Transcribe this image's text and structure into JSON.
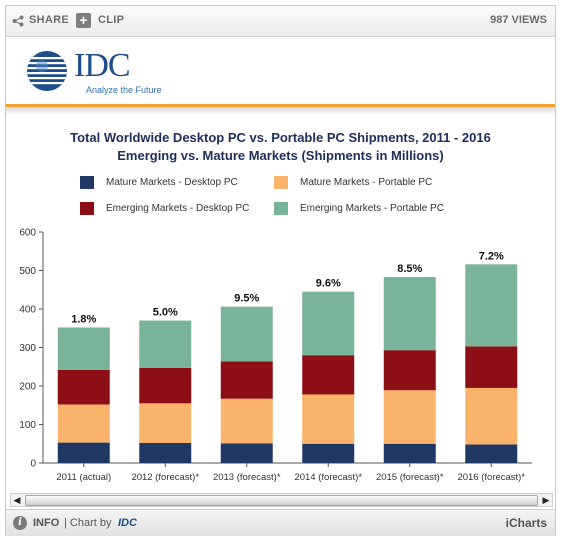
{
  "toolbar": {
    "share_label": "SHARE",
    "clip_label": "CLIP",
    "clip_icon": "plus-icon",
    "views_label": "987 VIEWS"
  },
  "logo": {
    "name": "IDC",
    "tagline": "Analyze the Future"
  },
  "footer": {
    "info_label": "INFO",
    "chart_by_label": "| Chart by",
    "chart_by_brand": "IDC",
    "brand_label": "iCharts"
  },
  "colors": {
    "accent": "#f0a030",
    "mature_desktop": "#1f3864",
    "mature_portable": "#f9b36a",
    "emerging_desktop": "#8b0f14",
    "emerging_portable": "#79b39a"
  },
  "chart_data": {
    "type": "bar",
    "stacked": true,
    "title": "Total Worldwide Desktop PC vs. Portable PC Shipments, 2011 - 2016",
    "subtitle": "Emerging vs. Mature Markets (Shipments in Millions)",
    "categories": [
      "2011 (actual)",
      "2012 (forecast)*",
      "2013 (forecast)*",
      "2014 (forecast)*",
      "2015 (forecast)*",
      "2016 (forecast)*"
    ],
    "series": [
      {
        "name": "Mature Markets - Desktop PC",
        "color": "#1f3864",
        "values": [
          53,
          52,
          51,
          50,
          50,
          48
        ]
      },
      {
        "name": "Mature Markets - Portable PC",
        "color": "#f9b36a",
        "values": [
          99,
          103,
          116,
          128,
          139,
          147
        ]
      },
      {
        "name": "Emerging Markets - Desktop PC",
        "color": "#8b0f14",
        "values": [
          90,
          92,
          97,
          102,
          104,
          108
        ]
      },
      {
        "name": "Emerging Markets - Portable PC",
        "color": "#79b39a",
        "values": [
          110,
          123,
          142,
          165,
          190,
          213
        ]
      }
    ],
    "data_labels": [
      "1.8%",
      "5.0%",
      "9.5%",
      "9.6%",
      "8.5%",
      "7.2%"
    ],
    "ylim": [
      0,
      600
    ],
    "yticks": [
      0,
      100,
      200,
      300,
      400,
      500,
      600
    ],
    "legend": "top",
    "grid": false
  }
}
